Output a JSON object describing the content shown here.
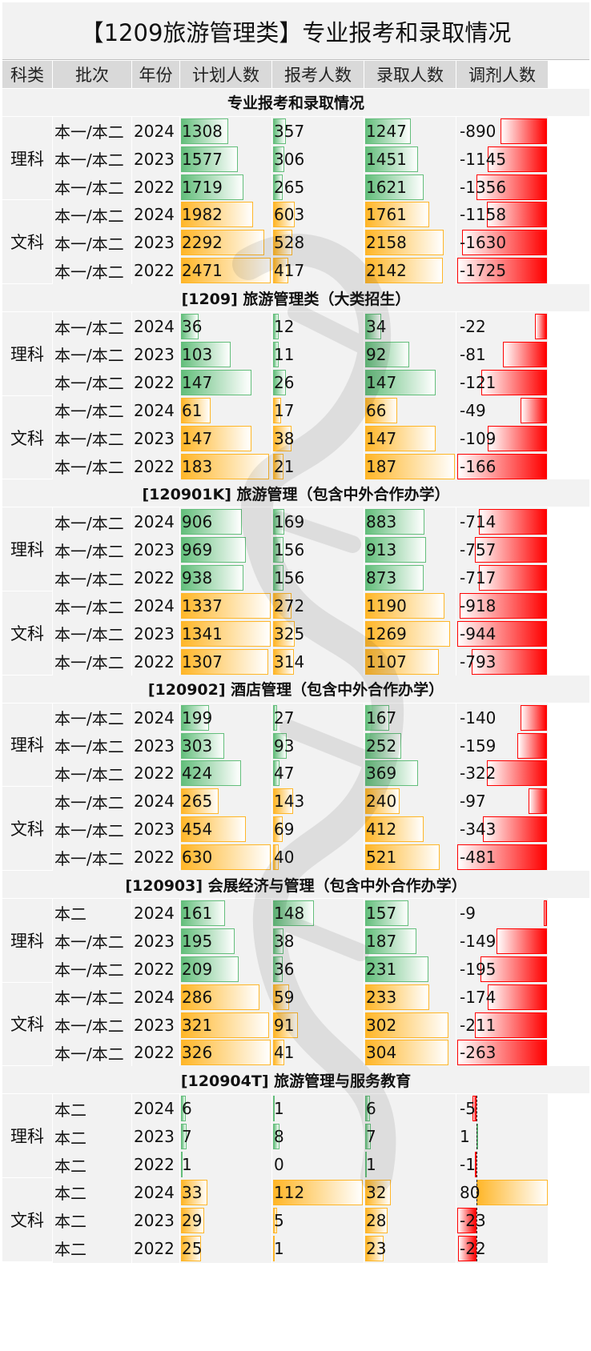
{
  "title": "【1209旅游管理类】专业报考和录取情况",
  "headers": [
    "科类",
    "批次",
    "年份",
    "计划人数",
    "报考人数",
    "录取人数",
    "调剂人数"
  ],
  "colors": {
    "science_bar": "#63be7b",
    "arts_bar": "#ffb628",
    "negative_bar": "#ff0000",
    "header_bg": "#d9d9d9",
    "row_bg": "#f2f2f2"
  },
  "sections": [
    {
      "title": "专业报考和录取情况",
      "groups": [
        {
          "subject": "理科",
          "rows": [
            {
              "batch": "本一/本二",
              "year": "2024",
              "plan": 1308,
              "apply": 357,
              "admit": 1247,
              "adjust": -890
            },
            {
              "batch": "本一/本二",
              "year": "2023",
              "plan": 1577,
              "apply": 306,
              "admit": 1451,
              "adjust": -1145
            },
            {
              "batch": "本一/本二",
              "year": "2022",
              "plan": 1719,
              "apply": 265,
              "admit": 1621,
              "adjust": -1356
            }
          ]
        },
        {
          "subject": "文科",
          "rows": [
            {
              "batch": "本一/本二",
              "year": "2024",
              "plan": 1982,
              "apply": 603,
              "admit": 1761,
              "adjust": -1158
            },
            {
              "batch": "本一/本二",
              "year": "2023",
              "plan": 2292,
              "apply": 528,
              "admit": 2158,
              "adjust": -1630
            },
            {
              "batch": "本一/本二",
              "year": "2022",
              "plan": 2471,
              "apply": 417,
              "admit": 2142,
              "adjust": -1725
            }
          ]
        }
      ]
    },
    {
      "title": "[1209] 旅游管理类（大类招生）",
      "groups": [
        {
          "subject": "理科",
          "rows": [
            {
              "batch": "本一/本二",
              "year": "2024",
              "plan": 36,
              "apply": 12,
              "admit": 34,
              "adjust": -22
            },
            {
              "batch": "本一/本二",
              "year": "2023",
              "plan": 103,
              "apply": 11,
              "admit": 92,
              "adjust": -81
            },
            {
              "batch": "本一/本二",
              "year": "2022",
              "plan": 147,
              "apply": 26,
              "admit": 147,
              "adjust": -121
            }
          ]
        },
        {
          "subject": "文科",
          "rows": [
            {
              "batch": "本一/本二",
              "year": "2024",
              "plan": 61,
              "apply": 17,
              "admit": 66,
              "adjust": -49
            },
            {
              "batch": "本一/本二",
              "year": "2023",
              "plan": 147,
              "apply": 38,
              "admit": 147,
              "adjust": -109
            },
            {
              "batch": "本一/本二",
              "year": "2022",
              "plan": 183,
              "apply": 21,
              "admit": 187,
              "adjust": -166
            }
          ]
        }
      ]
    },
    {
      "title": "[120901K] 旅游管理（包含中外合作办学）",
      "groups": [
        {
          "subject": "理科",
          "rows": [
            {
              "batch": "本一/本二",
              "year": "2024",
              "plan": 906,
              "apply": 169,
              "admit": 883,
              "adjust": -714
            },
            {
              "batch": "本一/本二",
              "year": "2023",
              "plan": 969,
              "apply": 156,
              "admit": 913,
              "adjust": -757
            },
            {
              "batch": "本一/本二",
              "year": "2022",
              "plan": 938,
              "apply": 156,
              "admit": 873,
              "adjust": -717
            }
          ]
        },
        {
          "subject": "文科",
          "rows": [
            {
              "batch": "本一/本二",
              "year": "2024",
              "plan": 1337,
              "apply": 272,
              "admit": 1190,
              "adjust": -918
            },
            {
              "batch": "本一/本二",
              "year": "2023",
              "plan": 1341,
              "apply": 325,
              "admit": 1269,
              "adjust": -944
            },
            {
              "batch": "本一/本二",
              "year": "2022",
              "plan": 1307,
              "apply": 314,
              "admit": 1107,
              "adjust": -793
            }
          ]
        }
      ]
    },
    {
      "title": "[120902] 酒店管理（包含中外合作办学）",
      "groups": [
        {
          "subject": "理科",
          "rows": [
            {
              "batch": "本一/本二",
              "year": "2024",
              "plan": 199,
              "apply": 27,
              "admit": 167,
              "adjust": -140
            },
            {
              "batch": "本一/本二",
              "year": "2023",
              "plan": 303,
              "apply": 93,
              "admit": 252,
              "adjust": -159
            },
            {
              "batch": "本一/本二",
              "year": "2022",
              "plan": 424,
              "apply": 47,
              "admit": 369,
              "adjust": -322
            }
          ]
        },
        {
          "subject": "文科",
          "rows": [
            {
              "batch": "本一/本二",
              "year": "2024",
              "plan": 265,
              "apply": 143,
              "admit": 240,
              "adjust": -97
            },
            {
              "batch": "本一/本二",
              "year": "2023",
              "plan": 454,
              "apply": 69,
              "admit": 412,
              "adjust": -343
            },
            {
              "batch": "本一/本二",
              "year": "2022",
              "plan": 630,
              "apply": 40,
              "admit": 521,
              "adjust": -481
            }
          ]
        }
      ]
    },
    {
      "title": "[120903] 会展经济与管理（包含中外合作办学）",
      "groups": [
        {
          "subject": "理科",
          "rows": [
            {
              "batch": "本二",
              "year": "2024",
              "plan": 161,
              "apply": 148,
              "admit": 157,
              "adjust": -9
            },
            {
              "batch": "本一/本二",
              "year": "2023",
              "plan": 195,
              "apply": 38,
              "admit": 187,
              "adjust": -149
            },
            {
              "batch": "本一/本二",
              "year": "2022",
              "plan": 209,
              "apply": 36,
              "admit": 231,
              "adjust": -195
            }
          ]
        },
        {
          "subject": "文科",
          "rows": [
            {
              "batch": "本一/本二",
              "year": "2024",
              "plan": 286,
              "apply": 59,
              "admit": 233,
              "adjust": -174
            },
            {
              "batch": "本一/本二",
              "year": "2023",
              "plan": 321,
              "apply": 91,
              "admit": 302,
              "adjust": -211
            },
            {
              "batch": "本一/本二",
              "year": "2022",
              "plan": 326,
              "apply": 41,
              "admit": 304,
              "adjust": -263
            }
          ]
        }
      ]
    },
    {
      "title": "[120904T] 旅游管理与服务教育",
      "groups": [
        {
          "subject": "理科",
          "rows": [
            {
              "batch": "本二",
              "year": "2024",
              "plan": 6,
              "apply": 1,
              "admit": 6,
              "adjust": -5
            },
            {
              "batch": "本二",
              "year": "2023",
              "plan": 7,
              "apply": 8,
              "admit": 7,
              "adjust": 1
            },
            {
              "batch": "本二",
              "year": "2022",
              "plan": 1,
              "apply": 0,
              "admit": 1,
              "adjust": -1
            }
          ]
        },
        {
          "subject": "文科",
          "rows": [
            {
              "batch": "本二",
              "year": "2024",
              "plan": 33,
              "apply": 112,
              "admit": 32,
              "adjust": 80
            },
            {
              "batch": "本二",
              "year": "2023",
              "plan": 29,
              "apply": 5,
              "admit": 28,
              "adjust": -23
            },
            {
              "batch": "本二",
              "year": "2022",
              "plan": 25,
              "apply": 1,
              "admit": 23,
              "adjust": -22
            }
          ]
        }
      ]
    }
  ]
}
